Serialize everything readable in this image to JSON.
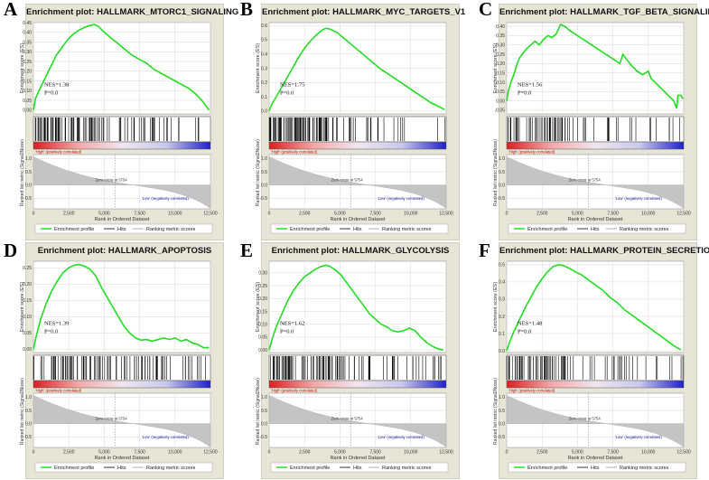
{
  "colors": {
    "es_line": "#22dd22",
    "panel_bg": "#e7e5d5",
    "metric_fill": "#c4c4c4",
    "hit": "#000000",
    "grid": "#d8d8d8",
    "bar_gradient": [
      "#d82020",
      "#f4a6a6",
      "#f0e6ee",
      "#c8c8ec",
      "#2020c8"
    ],
    "pos_label": "#cc0000",
    "neg_label": "#1a1aa0"
  },
  "labels": {
    "es_axis": "Enrichment score (ES)",
    "metric_axis": "Ranked list metric (Signal2Noise)",
    "x_axis": "Rank in Ordered Dataset",
    "pos_corr": "'High' (positively correlated)",
    "neg_corr": "'Low' (negatively correlated)",
    "zero_cross": "Zero cross at 5754",
    "legend": [
      "Enrichment profile",
      "Hits",
      "Ranking metric scores"
    ]
  },
  "chart_data": [
    {
      "letter": "A",
      "type": "line",
      "title": "Enrichment plot: HALLMARK_MTORC1_SIGNALING",
      "nes_text": "NES=1.38",
      "p_text": "P=0.0",
      "xlim": [
        0,
        12500
      ],
      "xticks": [
        "0",
        "2,500",
        "5,000",
        "7,500",
        "10,000",
        "12,500"
      ],
      "ylim": [
        -0.02,
        0.45
      ],
      "yticks": [
        "0.45",
        "0.40",
        "0.35",
        "0.30",
        "0.25",
        "0.20",
        "0.15",
        "0.10",
        "0.05",
        "0.00"
      ],
      "metric_yticks": [
        "1.0",
        "0.5",
        "0.0",
        "-0.5"
      ],
      "es_curve": [
        [
          0,
          0
        ],
        [
          150,
          0.06
        ],
        [
          400,
          0.1
        ],
        [
          800,
          0.16
        ],
        [
          1200,
          0.22
        ],
        [
          1600,
          0.28
        ],
        [
          2000,
          0.32
        ],
        [
          2400,
          0.36
        ],
        [
          2800,
          0.39
        ],
        [
          3200,
          0.41
        ],
        [
          3600,
          0.425
        ],
        [
          4000,
          0.435
        ],
        [
          4300,
          0.44
        ],
        [
          4600,
          0.43
        ],
        [
          5000,
          0.4
        ],
        [
          5500,
          0.37
        ],
        [
          6000,
          0.34
        ],
        [
          6500,
          0.31
        ],
        [
          7000,
          0.28
        ],
        [
          7500,
          0.26
        ],
        [
          8000,
          0.24
        ],
        [
          8500,
          0.21
        ],
        [
          9000,
          0.19
        ],
        [
          9500,
          0.17
        ],
        [
          10000,
          0.15
        ],
        [
          10500,
          0.13
        ],
        [
          11000,
          0.11
        ],
        [
          11500,
          0.08
        ],
        [
          12000,
          0.04
        ],
        [
          12400,
          0.0
        ]
      ],
      "hit_zones": [
        [
          0,
          4500,
          70
        ],
        [
          4500,
          8500,
          25
        ],
        [
          8500,
          12500,
          12
        ]
      ]
    },
    {
      "letter": "B",
      "type": "line",
      "title": "Enrichment plot: HALLMARK_MYC_TARGETS_V1",
      "nes_text": "NES=1.75",
      "p_text": "P=0.0",
      "xlim": [
        0,
        12500
      ],
      "xticks": [
        "0",
        "2,500",
        "5,000",
        "7,500",
        "10,000",
        "12,500"
      ],
      "ylim": [
        -0.02,
        0.62
      ],
      "yticks": [
        "0.6",
        "0.5",
        "0.4",
        "0.3",
        "0.2",
        "0.1",
        "0.0"
      ],
      "metric_yticks": [
        "1.0",
        "0.5",
        "0.0",
        "-0.5"
      ],
      "es_curve": [
        [
          0,
          0
        ],
        [
          200,
          0.05
        ],
        [
          500,
          0.1
        ],
        [
          900,
          0.17
        ],
        [
          1300,
          0.24
        ],
        [
          1700,
          0.31
        ],
        [
          2100,
          0.38
        ],
        [
          2500,
          0.44
        ],
        [
          2900,
          0.49
        ],
        [
          3300,
          0.53
        ],
        [
          3700,
          0.565
        ],
        [
          4000,
          0.58
        ],
        [
          4300,
          0.575
        ],
        [
          4800,
          0.55
        ],
        [
          5400,
          0.5
        ],
        [
          6000,
          0.45
        ],
        [
          6600,
          0.4
        ],
        [
          7200,
          0.35
        ],
        [
          7800,
          0.3
        ],
        [
          8400,
          0.26
        ],
        [
          9000,
          0.22
        ],
        [
          9600,
          0.18
        ],
        [
          10200,
          0.14
        ],
        [
          10800,
          0.1
        ],
        [
          11400,
          0.06
        ],
        [
          12000,
          0.03
        ],
        [
          12400,
          0.01
        ]
      ],
      "hit_zones": [
        [
          0,
          4200,
          85
        ],
        [
          4200,
          8000,
          18
        ],
        [
          8000,
          12500,
          8
        ]
      ]
    },
    {
      "letter": "C",
      "type": "line",
      "title": "Enrichment plot: HALLMARK_TGF_BETA_SIGNALING",
      "nes_text": "NES=1.56",
      "p_text": "P=0.0",
      "xlim": [
        0,
        12500
      ],
      "xticks": [
        "0",
        "2,500",
        "5,000",
        "7,500",
        "10,000",
        "12,500"
      ],
      "ylim": [
        -0.07,
        0.42
      ],
      "yticks": [
        "0.40",
        "0.35",
        "0.30",
        "0.25",
        "0.20",
        "0.15",
        "0.10",
        "0.05",
        "0.00",
        "-0.05"
      ],
      "metric_yticks": [
        "1.0",
        "0.5",
        "0.0",
        "-0.5"
      ],
      "es_curve": [
        [
          0,
          0
        ],
        [
          100,
          0.05
        ],
        [
          300,
          0.1
        ],
        [
          500,
          0.14
        ],
        [
          700,
          0.19
        ],
        [
          900,
          0.23
        ],
        [
          1100,
          0.25
        ],
        [
          1400,
          0.28
        ],
        [
          1700,
          0.3
        ],
        [
          2000,
          0.32
        ],
        [
          2300,
          0.3
        ],
        [
          2600,
          0.33
        ],
        [
          2900,
          0.35
        ],
        [
          3200,
          0.34
        ],
        [
          3500,
          0.36
        ],
        [
          3800,
          0.41
        ],
        [
          4100,
          0.4
        ],
        [
          4400,
          0.38
        ],
        [
          4800,
          0.36
        ],
        [
          5200,
          0.34
        ],
        [
          5600,
          0.32
        ],
        [
          6000,
          0.3
        ],
        [
          6400,
          0.28
        ],
        [
          6800,
          0.26
        ],
        [
          7200,
          0.24
        ],
        [
          7600,
          0.22
        ],
        [
          8000,
          0.2
        ],
        [
          8200,
          0.25
        ],
        [
          8500,
          0.22
        ],
        [
          8800,
          0.19
        ],
        [
          9200,
          0.16
        ],
        [
          9600,
          0.14
        ],
        [
          10000,
          0.16
        ],
        [
          10200,
          0.12
        ],
        [
          10600,
          0.09
        ],
        [
          11000,
          0.06
        ],
        [
          11400,
          0.03
        ],
        [
          11800,
          0.0
        ],
        [
          12000,
          -0.04
        ],
        [
          12100,
          0.03
        ],
        [
          12300,
          0.03
        ],
        [
          12450,
          0.01
        ]
      ],
      "hit_zones": [
        [
          0,
          4200,
          45
        ],
        [
          4200,
          8500,
          14
        ],
        [
          8500,
          12500,
          10
        ]
      ]
    },
    {
      "letter": "D",
      "type": "line",
      "title": "Enrichment plot: HALLMARK_APOPTOSIS",
      "nes_text": "NES=1.39",
      "p_text": "P=0.0",
      "xlim": [
        0,
        12500
      ],
      "xticks": [
        "0",
        "2,500",
        "5,000",
        "7,500",
        "10,000",
        "12,500"
      ],
      "ylim": [
        -0.01,
        0.27
      ],
      "yticks": [
        "0.25",
        "0.20",
        "0.15",
        "0.10",
        "0.05",
        "0.00"
      ],
      "metric_yticks": [
        "1.0",
        "0.5",
        "0.0",
        "-0.5"
      ],
      "es_curve": [
        [
          0,
          0
        ],
        [
          200,
          0.04
        ],
        [
          500,
          0.09
        ],
        [
          900,
          0.14
        ],
        [
          1300,
          0.18
        ],
        [
          1700,
          0.21
        ],
        [
          2100,
          0.235
        ],
        [
          2500,
          0.25
        ],
        [
          2900,
          0.258
        ],
        [
          3200,
          0.26
        ],
        [
          3600,
          0.255
        ],
        [
          4000,
          0.245
        ],
        [
          4400,
          0.225
        ],
        [
          4800,
          0.19
        ],
        [
          5200,
          0.16
        ],
        [
          5600,
          0.13
        ],
        [
          6000,
          0.1
        ],
        [
          6400,
          0.07
        ],
        [
          6800,
          0.05
        ],
        [
          7200,
          0.035
        ],
        [
          7600,
          0.028
        ],
        [
          8000,
          0.03
        ],
        [
          8400,
          0.025
        ],
        [
          8800,
          0.03
        ],
        [
          9200,
          0.035
        ],
        [
          9600,
          0.03
        ],
        [
          10000,
          0.035
        ],
        [
          10400,
          0.025
        ],
        [
          10800,
          0.03
        ],
        [
          11200,
          0.02
        ],
        [
          11600,
          0.015
        ],
        [
          12000,
          0.005
        ],
        [
          12400,
          0.005
        ]
      ],
      "hit_zones": [
        [
          0,
          4800,
          50
        ],
        [
          4800,
          8500,
          26
        ],
        [
          8500,
          12500,
          20
        ]
      ]
    },
    {
      "letter": "E",
      "type": "line",
      "title": "Enrichment plot: HALLMARK_GLYCOLYSIS",
      "nes_text": "NES=1.62",
      "p_text": "P=0.0",
      "xlim": [
        0,
        12500
      ],
      "xticks": [
        "0",
        "2,500",
        "5,000",
        "7,500",
        "10,000",
        "12,500"
      ],
      "ylim": [
        -0.01,
        0.345
      ],
      "yticks": [
        "0.30",
        "0.25",
        "0.20",
        "0.15",
        "0.10",
        "0.05",
        "0.00"
      ],
      "metric_yticks": [
        "1.0",
        "0.5",
        "0.0",
        "-0.5"
      ],
      "es_curve": [
        [
          0,
          0
        ],
        [
          200,
          0.04
        ],
        [
          500,
          0.09
        ],
        [
          900,
          0.14
        ],
        [
          1300,
          0.19
        ],
        [
          1700,
          0.23
        ],
        [
          2100,
          0.26
        ],
        [
          2500,
          0.285
        ],
        [
          2900,
          0.3
        ],
        [
          3300,
          0.315
        ],
        [
          3700,
          0.325
        ],
        [
          4000,
          0.33
        ],
        [
          4300,
          0.325
        ],
        [
          4700,
          0.31
        ],
        [
          5100,
          0.29
        ],
        [
          5500,
          0.26
        ],
        [
          5900,
          0.23
        ],
        [
          6300,
          0.2
        ],
        [
          6700,
          0.17
        ],
        [
          7100,
          0.14
        ],
        [
          7500,
          0.12
        ],
        [
          7900,
          0.1
        ],
        [
          8300,
          0.09
        ],
        [
          8700,
          0.075
        ],
        [
          9100,
          0.07
        ],
        [
          9500,
          0.075
        ],
        [
          9900,
          0.085
        ],
        [
          10300,
          0.075
        ],
        [
          10700,
          0.05
        ],
        [
          11100,
          0.03
        ],
        [
          11500,
          0.015
        ],
        [
          11900,
          0.005
        ],
        [
          12300,
          0.0
        ]
      ],
      "hit_zones": [
        [
          0,
          4500,
          60
        ],
        [
          4500,
          9000,
          28
        ],
        [
          9000,
          12500,
          14
        ]
      ]
    },
    {
      "letter": "F",
      "type": "line",
      "title": "Enrichment plot: HALLMARK_PROTEIN_SECRETION",
      "nes_text": "NES=1.48",
      "p_text": "P=0.0",
      "xlim": [
        0,
        12500
      ],
      "xticks": [
        "0",
        "2,500",
        "5,000",
        "7,500",
        "10,000",
        "12,500"
      ],
      "ylim": [
        -0.01,
        0.52
      ],
      "yticks": [
        "0.5",
        "0.4",
        "0.3",
        "0.2",
        "0.1",
        "0.0"
      ],
      "metric_yticks": [
        "1.0",
        "0.5",
        "0.0",
        "-0.5"
      ],
      "es_curve": [
        [
          0,
          0
        ],
        [
          200,
          0.05
        ],
        [
          500,
          0.11
        ],
        [
          900,
          0.18
        ],
        [
          1300,
          0.25
        ],
        [
          1700,
          0.31
        ],
        [
          2100,
          0.37
        ],
        [
          2500,
          0.42
        ],
        [
          2900,
          0.46
        ],
        [
          3300,
          0.49
        ],
        [
          3700,
          0.5
        ],
        [
          4000,
          0.495
        ],
        [
          4400,
          0.48
        ],
        [
          4800,
          0.46
        ],
        [
          5300,
          0.44
        ],
        [
          5800,
          0.41
        ],
        [
          6300,
          0.38
        ],
        [
          6800,
          0.35
        ],
        [
          7300,
          0.31
        ],
        [
          7800,
          0.28
        ],
        [
          8300,
          0.24
        ],
        [
          8800,
          0.21
        ],
        [
          9300,
          0.18
        ],
        [
          9800,
          0.15
        ],
        [
          10300,
          0.12
        ],
        [
          10800,
          0.09
        ],
        [
          11300,
          0.06
        ],
        [
          11800,
          0.03
        ],
        [
          12300,
          0.005
        ]
      ],
      "hit_zones": [
        [
          0,
          4300,
          55
        ],
        [
          4300,
          8500,
          18
        ],
        [
          8500,
          12500,
          10
        ]
      ]
    }
  ]
}
